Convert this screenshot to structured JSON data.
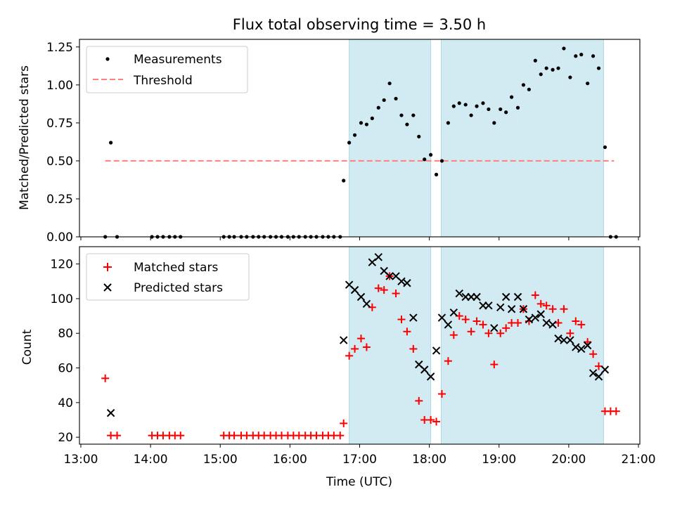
{
  "chart_data": {
    "type": "scatter",
    "title": "Flux total observing time = 3.50 h",
    "xlabel": "Time (UTC)",
    "x_unit": "hours UTC",
    "xlim": [
      12.98,
      21.02
    ],
    "x_ticks": [
      13,
      14,
      15,
      16,
      17,
      18,
      19,
      20,
      21
    ],
    "x_tick_labels": [
      "13:00",
      "14:00",
      "15:00",
      "16:00",
      "17:00",
      "18:00",
      "19:00",
      "20:00",
      "21:00"
    ],
    "shaded_intervals": [
      [
        16.85,
        18.02
      ],
      [
        18.17,
        20.5
      ]
    ],
    "shade_color": "#add8e6",
    "top_panel": {
      "ylabel": "Matched/Predicted stars",
      "ylim": [
        0,
        1.3
      ],
      "y_ticks": [
        0,
        0.25,
        0.5,
        0.75,
        1.0,
        1.25
      ],
      "y_tick_labels": [
        "0.00",
        "0.25",
        "0.50",
        "0.75",
        "1.00",
        "1.25"
      ],
      "legend": [
        "Measurements",
        "Threshold"
      ],
      "threshold": {
        "name": "Threshold",
        "y": 0.5,
        "x_range": [
          13.35,
          20.65
        ],
        "color": "#ff7f7f"
      },
      "series": [
        {
          "name": "Measurements",
          "color": "#000000",
          "points": [
            [
              13.35,
              0
            ],
            [
              13.43,
              0.62
            ],
            [
              13.52,
              0
            ],
            [
              14.02,
              0
            ],
            [
              14.1,
              0
            ],
            [
              14.18,
              0
            ],
            [
              14.27,
              0
            ],
            [
              14.35,
              0
            ],
            [
              14.43,
              0
            ],
            [
              15.05,
              0
            ],
            [
              15.13,
              0
            ],
            [
              15.2,
              0
            ],
            [
              15.3,
              0
            ],
            [
              15.38,
              0
            ],
            [
              15.47,
              0
            ],
            [
              15.55,
              0
            ],
            [
              15.63,
              0
            ],
            [
              15.72,
              0
            ],
            [
              15.8,
              0
            ],
            [
              15.88,
              0
            ],
            [
              15.97,
              0
            ],
            [
              16.05,
              0
            ],
            [
              16.13,
              0
            ],
            [
              16.22,
              0
            ],
            [
              16.3,
              0
            ],
            [
              16.38,
              0
            ],
            [
              16.47,
              0
            ],
            [
              16.55,
              0
            ],
            [
              16.63,
              0
            ],
            [
              16.72,
              0
            ],
            [
              16.77,
              0.37
            ],
            [
              16.85,
              0.62
            ],
            [
              16.93,
              0.67
            ],
            [
              17.02,
              0.75
            ],
            [
              17.1,
              0.74
            ],
            [
              17.18,
              0.78
            ],
            [
              17.27,
              0.85
            ],
            [
              17.35,
              0.9
            ],
            [
              17.43,
              1.01
            ],
            [
              17.52,
              0.91
            ],
            [
              17.6,
              0.8
            ],
            [
              17.68,
              0.74
            ],
            [
              17.77,
              0.8
            ],
            [
              17.85,
              0.66
            ],
            [
              17.93,
              0.51
            ],
            [
              18.02,
              0.54
            ],
            [
              18.1,
              0.41
            ],
            [
              18.18,
              0.5
            ],
            [
              18.27,
              0.75
            ],
            [
              18.35,
              0.86
            ],
            [
              18.43,
              0.88
            ],
            [
              18.52,
              0.87
            ],
            [
              18.6,
              0.8
            ],
            [
              18.68,
              0.86
            ],
            [
              18.77,
              0.88
            ],
            [
              18.85,
              0.84
            ],
            [
              18.93,
              0.75
            ],
            [
              19.02,
              0.84
            ],
            [
              19.1,
              0.82
            ],
            [
              19.18,
              0.92
            ],
            [
              19.27,
              0.85
            ],
            [
              19.35,
              1.0
            ],
            [
              19.43,
              0.97
            ],
            [
              19.52,
              1.16
            ],
            [
              19.6,
              1.07
            ],
            [
              19.68,
              1.11
            ],
            [
              19.77,
              1.1
            ],
            [
              19.85,
              1.11
            ],
            [
              19.93,
              1.24
            ],
            [
              20.02,
              1.05
            ],
            [
              20.1,
              1.19
            ],
            [
              20.18,
              1.2
            ],
            [
              20.27,
              1.01
            ],
            [
              20.35,
              1.19
            ],
            [
              20.43,
              1.11
            ],
            [
              20.52,
              0.59
            ],
            [
              20.6,
              0
            ],
            [
              20.68,
              0
            ]
          ]
        }
      ]
    },
    "bottom_panel": {
      "ylabel": "Count",
      "ylim": [
        16,
        130
      ],
      "y_ticks": [
        20,
        40,
        60,
        80,
        100,
        120
      ],
      "y_tick_labels": [
        "20",
        "40",
        "60",
        "80",
        "100",
        "120"
      ],
      "legend": [
        "Matched stars",
        "Predicted stars"
      ],
      "series": [
        {
          "name": "Matched stars",
          "marker": "plus",
          "color": "#ff0000",
          "points": [
            [
              13.35,
              54
            ],
            [
              13.43,
              21
            ],
            [
              13.52,
              21
            ],
            [
              14.02,
              21
            ],
            [
              14.1,
              21
            ],
            [
              14.18,
              21
            ],
            [
              14.27,
              21
            ],
            [
              14.35,
              21
            ],
            [
              14.43,
              21
            ],
            [
              15.05,
              21
            ],
            [
              15.13,
              21
            ],
            [
              15.2,
              21
            ],
            [
              15.3,
              21
            ],
            [
              15.38,
              21
            ],
            [
              15.47,
              21
            ],
            [
              15.55,
              21
            ],
            [
              15.63,
              21
            ],
            [
              15.72,
              21
            ],
            [
              15.8,
              21
            ],
            [
              15.88,
              21
            ],
            [
              15.97,
              21
            ],
            [
              16.05,
              21
            ],
            [
              16.13,
              21
            ],
            [
              16.22,
              21
            ],
            [
              16.3,
              21
            ],
            [
              16.38,
              21
            ],
            [
              16.47,
              21
            ],
            [
              16.55,
              21
            ],
            [
              16.63,
              21
            ],
            [
              16.72,
              21
            ],
            [
              16.77,
              28
            ],
            [
              16.85,
              67
            ],
            [
              16.93,
              71
            ],
            [
              17.02,
              77
            ],
            [
              17.1,
              72
            ],
            [
              17.18,
              95
            ],
            [
              17.27,
              106
            ],
            [
              17.35,
              105
            ],
            [
              17.43,
              113
            ],
            [
              17.52,
              103
            ],
            [
              17.6,
              88
            ],
            [
              17.68,
              81
            ],
            [
              17.77,
              71
            ],
            [
              17.85,
              41
            ],
            [
              17.93,
              30
            ],
            [
              18.02,
              30
            ],
            [
              18.1,
              29
            ],
            [
              18.18,
              45
            ],
            [
              18.27,
              64
            ],
            [
              18.35,
              79
            ],
            [
              18.43,
              90
            ],
            [
              18.52,
              88
            ],
            [
              18.6,
              81
            ],
            [
              18.68,
              87
            ],
            [
              18.77,
              85
            ],
            [
              18.85,
              80
            ],
            [
              18.93,
              62
            ],
            [
              19.02,
              80
            ],
            [
              19.1,
              83
            ],
            [
              19.18,
              86
            ],
            [
              19.27,
              86
            ],
            [
              19.35,
              94
            ],
            [
              19.43,
              87
            ],
            [
              19.52,
              102
            ],
            [
              19.6,
              97
            ],
            [
              19.68,
              96
            ],
            [
              19.77,
              94
            ],
            [
              19.85,
              86
            ],
            [
              19.93,
              94
            ],
            [
              20.02,
              80
            ],
            [
              20.1,
              87
            ],
            [
              20.18,
              85
            ],
            [
              20.27,
              75
            ],
            [
              20.35,
              68
            ],
            [
              20.43,
              61
            ],
            [
              20.52,
              35
            ],
            [
              20.6,
              35
            ],
            [
              20.68,
              35
            ]
          ]
        },
        {
          "name": "Predicted stars",
          "marker": "x",
          "color": "#000000",
          "points": [
            [
              13.43,
              34
            ],
            [
              16.77,
              76
            ],
            [
              16.85,
              108
            ],
            [
              16.93,
              105
            ],
            [
              17.02,
              101
            ],
            [
              17.1,
              97
            ],
            [
              17.18,
              121
            ],
            [
              17.27,
              124
            ],
            [
              17.35,
              116
            ],
            [
              17.43,
              113
            ],
            [
              17.52,
              113
            ],
            [
              17.6,
              110
            ],
            [
              17.68,
              109
            ],
            [
              17.77,
              89
            ],
            [
              17.85,
              62
            ],
            [
              17.93,
              59
            ],
            [
              18.02,
              55
            ],
            [
              18.1,
              70
            ],
            [
              18.18,
              89
            ],
            [
              18.27,
              85
            ],
            [
              18.35,
              92
            ],
            [
              18.43,
              103
            ],
            [
              18.52,
              101
            ],
            [
              18.6,
              101
            ],
            [
              18.68,
              101
            ],
            [
              18.77,
              96
            ],
            [
              18.85,
              96
            ],
            [
              18.93,
              83
            ],
            [
              19.02,
              95
            ],
            [
              19.1,
              101
            ],
            [
              19.18,
              94
            ],
            [
              19.27,
              101
            ],
            [
              19.35,
              94
            ],
            [
              19.43,
              88
            ],
            [
              19.52,
              89
            ],
            [
              19.6,
              91
            ],
            [
              19.68,
              86
            ],
            [
              19.77,
              85
            ],
            [
              19.85,
              77
            ],
            [
              19.93,
              76
            ],
            [
              20.02,
              76
            ],
            [
              20.1,
              72
            ],
            [
              20.18,
              71
            ],
            [
              20.27,
              73
            ],
            [
              20.35,
              57
            ],
            [
              20.43,
              55
            ],
            [
              20.52,
              59
            ]
          ]
        }
      ]
    }
  }
}
